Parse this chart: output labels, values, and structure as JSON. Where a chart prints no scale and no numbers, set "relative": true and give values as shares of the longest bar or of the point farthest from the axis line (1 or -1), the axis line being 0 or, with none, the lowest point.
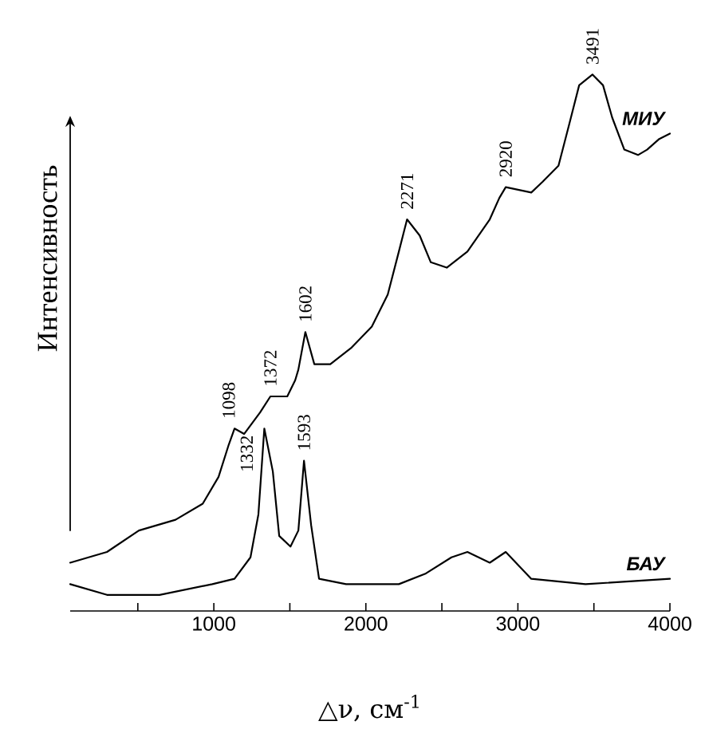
{
  "chart_data": {
    "type": "line",
    "relative": true,
    "xlabel": "△ν, см$^{-1}$",
    "ylabel": "Интенсивность",
    "xlim": [
      55,
      4000
    ],
    "xticks": [
      {
        "value": 500,
        "label": null
      },
      1000,
      {
        "value": 1500,
        "label": null
      },
      2000,
      {
        "value": 2500,
        "label": null
      },
      3000,
      {
        "value": 3500,
        "label": null
      },
      4000
    ],
    "series": [
      {
        "name": "МИУ",
        "color": "#000000",
        "x": [
          55,
          297,
          507,
          748,
          927,
          1031,
          1098,
          1136,
          1199,
          1304,
          1372,
          1409,
          1483,
          1535,
          1556,
          1602,
          1661,
          1766,
          1902,
          2039,
          2144,
          2217,
          2271,
          2354,
          2427,
          2532,
          2668,
          2815,
          2878,
          2920,
          3088,
          3162,
          3267,
          3340,
          3403,
          3491,
          3560,
          3620,
          3700,
          3790,
          3850,
          3930,
          4000
        ],
        "values": [
          0.09,
          0.11,
          0.15,
          0.17,
          0.2,
          0.25,
          0.31,
          0.34,
          0.33,
          0.37,
          0.4,
          0.4,
          0.4,
          0.43,
          0.45,
          0.52,
          0.46,
          0.46,
          0.49,
          0.53,
          0.59,
          0.67,
          0.73,
          0.7,
          0.65,
          0.64,
          0.67,
          0.73,
          0.77,
          0.79,
          0.78,
          0.8,
          0.83,
          0.91,
          0.98,
          1.0,
          0.98,
          0.92,
          0.86,
          0.85,
          0.86,
          0.88,
          0.89
        ]
      },
      {
        "name": "БАУ",
        "color": "#000000",
        "x": [
          55,
          297,
          643,
          990,
          1136,
          1241,
          1293,
          1332,
          1388,
          1430,
          1504,
          1556,
          1593,
          1640,
          1692,
          1870,
          2217,
          2395,
          2563,
          2668,
          2815,
          2920,
          3088,
          3445,
          4000
        ],
        "values": [
          0.05,
          0.03,
          0.03,
          0.05,
          0.06,
          0.1,
          0.18,
          0.34,
          0.26,
          0.14,
          0.12,
          0.15,
          0.28,
          0.16,
          0.06,
          0.05,
          0.05,
          0.07,
          0.1,
          0.11,
          0.09,
          0.11,
          0.06,
          0.05,
          0.06
        ]
      }
    ],
    "annotations": [
      {
        "text": "1098",
        "x": 1098,
        "y": 0.34
      },
      {
        "text": "1372",
        "x": 1372,
        "y": 0.4
      },
      {
        "text": "1602",
        "x": 1602,
        "y": 0.52
      },
      {
        "text": "2271",
        "x": 2271,
        "y": 0.73
      },
      {
        "text": "2920",
        "x": 2920,
        "y": 0.79
      },
      {
        "text": "3491",
        "x": 3491,
        "y": 1.0
      },
      {
        "text": "1332",
        "x": 1332,
        "y": 0.34
      },
      {
        "text": "1593",
        "x": 1593,
        "y": 0.28
      }
    ]
  }
}
